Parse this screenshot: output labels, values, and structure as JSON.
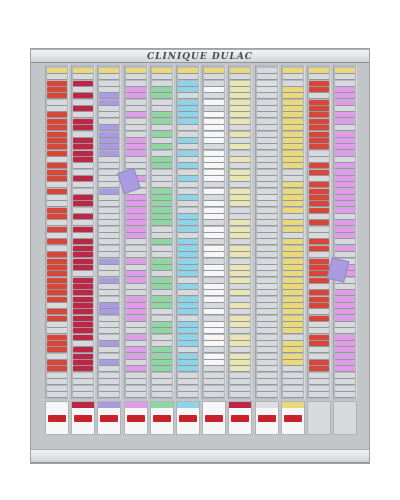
{
  "board": {
    "title": "CLINIQUE DULAC",
    "rows": 52,
    "colors": {
      "frame": "#c3c6c9",
      "slot": "#d7dadd",
      "yellow": "#ead97a",
      "red": "#d6473a",
      "crimson": "#bd2746",
      "violet": "#aa9be0",
      "pink": "#df9ce8",
      "green": "#8fd6a3",
      "blue": "#8fd3e8",
      "white": "#f6f6f6",
      "cream": "#eae6b4",
      "lightgray": "#dcdfe2",
      "orange": "#e88a4a",
      "tray_label": "#c8222a"
    },
    "columns": [
      {
        "top_color": "yellow",
        "color": "red",
        "fill": 0.75,
        "tray": "white"
      },
      {
        "top_color": "yellow",
        "color": "crimson",
        "fill": 0.72,
        "tray": "crimson"
      },
      {
        "top_color": "yellow",
        "color": "violet",
        "fill": 0.35,
        "tray": "violet"
      },
      {
        "top_color": "yellow",
        "color": "pink",
        "fill": 0.55,
        "tray": "pink"
      },
      {
        "top_color": "yellow",
        "color": "green",
        "fill": 0.72,
        "tray": "green"
      },
      {
        "top_color": "yellow",
        "color": "blue",
        "fill": 0.72,
        "tray": "blue"
      },
      {
        "top_color": "yellow",
        "color": "white",
        "fill": 0.75,
        "tray": "white"
      },
      {
        "top_color": "yellow",
        "color": "cream",
        "fill": 0.72,
        "tray": "crimson"
      },
      {
        "top_color": "slot",
        "color": "lightgray",
        "fill": 0.08,
        "tray": "lightgray"
      },
      {
        "top_color": "yellow",
        "color": "yellow",
        "fill": 0.75,
        "tray": "yellow"
      },
      {
        "top_color": "yellow",
        "color": "red",
        "fill": 0.55,
        "tray": "none"
      },
      {
        "top_color": "yellow",
        "color": "pink",
        "fill": 0.72,
        "tray": "none"
      }
    ],
    "loose_cards": [
      {
        "column": 3,
        "row": 16,
        "color": "violet"
      },
      {
        "column": 11,
        "row": 30,
        "color": "violet"
      }
    ]
  }
}
